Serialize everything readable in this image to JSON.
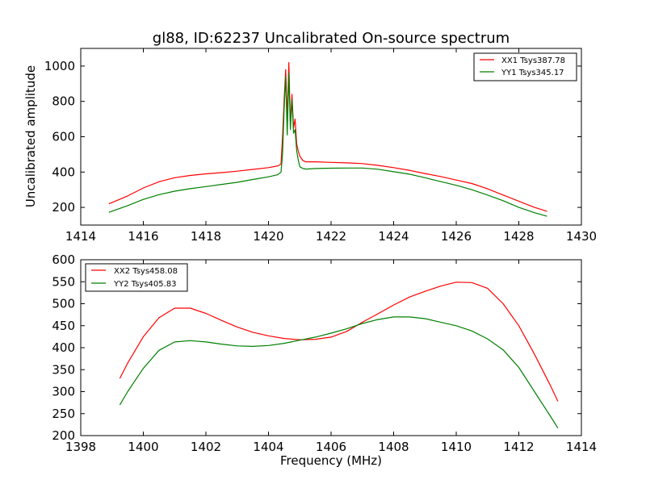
{
  "chart_data": [
    {
      "type": "line",
      "title": "gl88, ID:62237 Uncalibrated On-source spectrum",
      "xlabel": "",
      "ylabel": "Uncalibrated amplitude",
      "xlim": [
        1414,
        1430
      ],
      "ylim": [
        100,
        1100
      ],
      "x_ticks": [
        1414,
        1416,
        1418,
        1420,
        1422,
        1424,
        1426,
        1428,
        1430
      ],
      "y_ticks": [
        200,
        400,
        600,
        800,
        1000
      ],
      "grid": false,
      "legend_position": "top-right",
      "series": [
        {
          "name": "XX1 Tsys387.78",
          "color": "#ff0000",
          "x": [
            1414.9,
            1415.5,
            1416.0,
            1416.5,
            1417.0,
            1417.5,
            1418.0,
            1418.5,
            1419.0,
            1419.5,
            1420.0,
            1420.3,
            1420.4,
            1420.45,
            1420.5,
            1420.55,
            1420.6,
            1420.65,
            1420.7,
            1420.75,
            1420.8,
            1420.85,
            1420.9,
            1420.95,
            1421.0,
            1421.1,
            1421.2,
            1421.5,
            1422.0,
            1422.5,
            1423.0,
            1423.5,
            1424.0,
            1424.5,
            1425.0,
            1425.5,
            1426.0,
            1426.5,
            1427.0,
            1427.5,
            1428.0,
            1428.5,
            1428.9
          ],
          "y": [
            220,
            265,
            310,
            345,
            368,
            381,
            390,
            397,
            405,
            415,
            425,
            435,
            445,
            600,
            810,
            980,
            700,
            1020,
            680,
            840,
            650,
            700,
            560,
            520,
            490,
            465,
            458,
            458,
            455,
            452,
            448,
            438,
            425,
            410,
            392,
            375,
            355,
            335,
            305,
            270,
            235,
            200,
            178
          ]
        },
        {
          "name": "YY1 Tsys345.17",
          "color": "#008000",
          "x": [
            1414.9,
            1415.5,
            1416.0,
            1416.5,
            1417.0,
            1417.5,
            1418.0,
            1418.5,
            1419.0,
            1419.5,
            1420.0,
            1420.3,
            1420.4,
            1420.45,
            1420.5,
            1420.55,
            1420.6,
            1420.65,
            1420.7,
            1420.75,
            1420.8,
            1420.85,
            1420.9,
            1420.95,
            1421.0,
            1421.1,
            1421.2,
            1421.5,
            1422.0,
            1422.5,
            1423.0,
            1423.5,
            1424.0,
            1424.5,
            1425.0,
            1425.5,
            1426.0,
            1426.5,
            1427.0,
            1427.5,
            1428.0,
            1428.5,
            1428.9
          ],
          "y": [
            172,
            210,
            245,
            272,
            292,
            306,
            318,
            330,
            342,
            358,
            373,
            385,
            400,
            500,
            760,
            940,
            610,
            960,
            640,
            810,
            620,
            640,
            520,
            470,
            430,
            420,
            417,
            420,
            422,
            423,
            423,
            416,
            402,
            388,
            368,
            346,
            325,
            300,
            270,
            238,
            200,
            170,
            150
          ]
        }
      ]
    },
    {
      "type": "line",
      "title": "",
      "xlabel": "Frequency (MHz)",
      "ylabel": "",
      "xlim": [
        1398,
        1414
      ],
      "ylim": [
        200,
        600
      ],
      "x_ticks": [
        1398,
        1400,
        1402,
        1404,
        1406,
        1408,
        1410,
        1412,
        1414
      ],
      "y_ticks": [
        200,
        250,
        300,
        350,
        400,
        450,
        500,
        550,
        600
      ],
      "grid": false,
      "legend_position": "top-left",
      "series": [
        {
          "name": "XX2 Tsys458.08",
          "color": "#ff0000",
          "x": [
            1399.25,
            1399.5,
            1400.0,
            1400.5,
            1401.0,
            1401.5,
            1402.0,
            1402.5,
            1403.0,
            1403.5,
            1404.0,
            1404.5,
            1405.0,
            1405.5,
            1406.0,
            1406.5,
            1407.0,
            1407.5,
            1408.0,
            1408.5,
            1409.0,
            1409.5,
            1410.0,
            1410.5,
            1411.0,
            1411.5,
            1412.0,
            1412.5,
            1413.0,
            1413.25
          ],
          "y": [
            330,
            365,
            425,
            468,
            490,
            490,
            478,
            462,
            447,
            435,
            427,
            421,
            418,
            419,
            424,
            437,
            458,
            477,
            497,
            515,
            528,
            540,
            549,
            548,
            535,
            500,
            450,
            385,
            315,
            278
          ]
        },
        {
          "name": "YY2 Tsys405.83",
          "color": "#008000",
          "x": [
            1399.25,
            1399.5,
            1400.0,
            1400.5,
            1401.0,
            1401.5,
            1402.0,
            1402.5,
            1403.0,
            1403.5,
            1404.0,
            1404.5,
            1405.0,
            1405.5,
            1406.0,
            1406.5,
            1407.0,
            1407.5,
            1408.0,
            1408.5,
            1409.0,
            1409.5,
            1410.0,
            1410.5,
            1411.0,
            1411.5,
            1412.0,
            1412.5,
            1413.0,
            1413.25
          ],
          "y": [
            270,
            300,
            353,
            394,
            413,
            416,
            413,
            408,
            404,
            403,
            405,
            410,
            417,
            424,
            433,
            443,
            455,
            464,
            470,
            470,
            466,
            458,
            450,
            438,
            420,
            395,
            355,
            300,
            245,
            217
          ]
        }
      ]
    }
  ]
}
